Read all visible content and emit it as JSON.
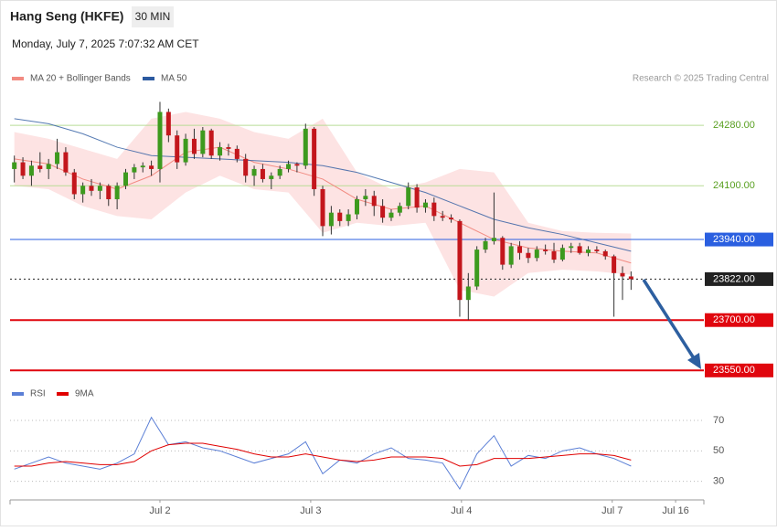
{
  "header": {
    "title": "Hang Seng (HKFE)",
    "interval": "30 MIN",
    "timestamp": "Monday, July 7, 2025 7:07:32 AM CET"
  },
  "chart_data": {
    "type": "candlestick",
    "credit": "Research © 2025 Trading Central",
    "xlim": [
      -0.5,
      80.5
    ],
    "xticks": [
      {
        "value": 17,
        "label": "Jul 2"
      },
      {
        "value": 34.6,
        "label": "Jul 3"
      },
      {
        "value": 52.2,
        "label": "Jul 4"
      },
      {
        "value": 69.8,
        "label": "Jul 7"
      },
      {
        "value": 77.2,
        "label": "Jul 16"
      }
    ],
    "ylim": [
      23510,
      24354
    ],
    "up_color": "#3d9a1e",
    "down_color": "#c3161c",
    "candles": [
      [
        24150,
        24190,
        24110,
        24170
      ],
      [
        24170,
        24185,
        24120,
        24130
      ],
      [
        24130,
        24175,
        24100,
        24160
      ],
      [
        24160,
        24200,
        24140,
        24150
      ],
      [
        24150,
        24180,
        24120,
        24165
      ],
      [
        24165,
        24240,
        24150,
        24200
      ],
      [
        24200,
        24215,
        24130,
        24140
      ],
      [
        24140,
        24150,
        24060,
        24075
      ],
      [
        24075,
        24110,
        24050,
        24100
      ],
      [
        24100,
        24120,
        24070,
        24085
      ],
      [
        24085,
        24110,
        24060,
        24100
      ],
      [
        24100,
        24105,
        24040,
        24060
      ],
      [
        24060,
        24110,
        24030,
        24100
      ],
      [
        24100,
        24150,
        24090,
        24140
      ],
      [
        24140,
        24165,
        24120,
        24155
      ],
      [
        24155,
        24170,
        24140,
        24160
      ],
      [
        24160,
        24175,
        24130,
        24150
      ],
      [
        24150,
        24350,
        24110,
        24320
      ],
      [
        24320,
        24330,
        24230,
        24250
      ],
      [
        24250,
        24265,
        24150,
        24170
      ],
      [
        24170,
        24255,
        24160,
        24240
      ],
      [
        24240,
        24270,
        24180,
        24195
      ],
      [
        24195,
        24275,
        24185,
        24265
      ],
      [
        24265,
        24270,
        24180,
        24190
      ],
      [
        24190,
        24230,
        24175,
        24215
      ],
      [
        24215,
        24225,
        24190,
        24210
      ],
      [
        24210,
        24220,
        24170,
        24180
      ],
      [
        24180,
        24195,
        24110,
        24130
      ],
      [
        24130,
        24160,
        24100,
        24150
      ],
      [
        24150,
        24165,
        24110,
        24120
      ],
      [
        24120,
        24140,
        24090,
        24130
      ],
      [
        24130,
        24160,
        24120,
        24150
      ],
      [
        24150,
        24175,
        24140,
        24165
      ],
      [
        24165,
        24170,
        24140,
        24160
      ],
      [
        24160,
        24285,
        24150,
        24270
      ],
      [
        24270,
        24275,
        24070,
        24090
      ],
      [
        24090,
        24100,
        23950,
        23980
      ],
      [
        23980,
        24040,
        23955,
        24020
      ],
      [
        24020,
        24030,
        23980,
        23995
      ],
      [
        23995,
        24030,
        23980,
        24015
      ],
      [
        24015,
        24070,
        24000,
        24060
      ],
      [
        24060,
        24090,
        24040,
        24070
      ],
      [
        24070,
        24085,
        24010,
        24040
      ],
      [
        24040,
        24060,
        23990,
        24005
      ],
      [
        24005,
        24030,
        23995,
        24020
      ],
      [
        24020,
        24050,
        24010,
        24040
      ],
      [
        24040,
        24110,
        24030,
        24095
      ],
      [
        24095,
        24105,
        24020,
        24035
      ],
      [
        24035,
        24060,
        24020,
        24050
      ],
      [
        24050,
        24065,
        23995,
        24010
      ],
      [
        24010,
        24025,
        23995,
        24005
      ],
      [
        24005,
        24015,
        23990,
        24000
      ],
      [
        23995,
        24000,
        23710,
        23760
      ],
      [
        23760,
        23840,
        23700,
        23800
      ],
      [
        23800,
        23920,
        23790,
        23910
      ],
      [
        23910,
        23945,
        23900,
        23935
      ],
      [
        23935,
        24080,
        23925,
        23945
      ],
      [
        23945,
        23950,
        23850,
        23865
      ],
      [
        23865,
        23930,
        23855,
        23920
      ],
      [
        23920,
        23935,
        23880,
        23900
      ],
      [
        23900,
        23915,
        23870,
        23885
      ],
      [
        23885,
        23920,
        23875,
        23910
      ],
      [
        23910,
        23925,
        23895,
        23905
      ],
      [
        23905,
        23930,
        23870,
        23880
      ],
      [
        23880,
        23925,
        23875,
        23915
      ],
      [
        23915,
        23930,
        23900,
        23920
      ],
      [
        23920,
        23930,
        23895,
        23900
      ],
      [
        23900,
        23920,
        23890,
        23910
      ],
      [
        23910,
        23920,
        23900,
        23905
      ],
      [
        23905,
        23910,
        23880,
        23890
      ],
      [
        23890,
        23895,
        23710,
        23840
      ],
      [
        23840,
        23860,
        23760,
        23830
      ],
      [
        23830,
        23845,
        23790,
        23822
      ]
    ],
    "overlay_x": [
      0,
      4,
      8,
      12,
      16,
      20,
      24,
      28,
      32,
      36,
      40,
      44,
      48,
      52,
      56,
      60,
      64,
      68,
      72
    ],
    "series": [
      {
        "name": "MA 20 + Bollinger Bands",
        "color": "#f28b82",
        "band_color": "#fde3e3",
        "values": [
          24180,
          24165,
          24120,
          24090,
          24130,
          24200,
          24215,
          24170,
          24150,
          24120,
          24060,
          24030,
          24040,
          23990,
          23940,
          23915,
          23905,
          23900,
          23870
        ],
        "upper": [
          24260,
          24240,
          24210,
          24180,
          24300,
          24320,
          24300,
          24260,
          24240,
          24300,
          24140,
          24090,
          24110,
          24150,
          24140,
          23990,
          23965,
          23960,
          23958
        ],
        "lower": [
          24100,
          24090,
          24040,
          24010,
          24000,
          24080,
          24130,
          24090,
          24080,
          23960,
          23990,
          23980,
          23990,
          23790,
          23770,
          23840,
          23850,
          23845,
          23835
        ]
      },
      {
        "name": "MA 50",
        "color": "#2c5aa0",
        "values": [
          24300,
          24285,
          24255,
          24215,
          24190,
          24185,
          24180,
          24175,
          24170,
          24160,
          24140,
          24110,
          24080,
          24040,
          24000,
          23975,
          23955,
          23930,
          23905
        ]
      }
    ],
    "levels": [
      {
        "value": 24280,
        "label": "24280.00",
        "color": "#b9dc96",
        "text_color": "#5aa022",
        "boxed": false,
        "dashed": false,
        "width": 1
      },
      {
        "value": 24100,
        "label": "24100.00",
        "color": "#b9dc96",
        "text_color": "#5aa022",
        "boxed": false,
        "dashed": false,
        "width": 1
      },
      {
        "value": 23940,
        "label": "23940.00",
        "color": "#2a5fe0",
        "text_color": "#ffffff",
        "boxed": true,
        "dashed": false,
        "width": 1
      },
      {
        "value": 23822,
        "label": "23822.00",
        "color": "#222222",
        "text_color": "#ffffff",
        "boxed": true,
        "dashed": true,
        "width": 1
      },
      {
        "value": 23700,
        "label": "23700.00",
        "color": "#e0060e",
        "text_color": "#ffffff",
        "boxed": true,
        "dashed": false,
        "width": 2
      },
      {
        "value": 23550,
        "label": "23550.00",
        "color": "#e0060e",
        "text_color": "#ffffff",
        "boxed": true,
        "dashed": false,
        "width": 2
      }
    ],
    "rsi": {
      "type": "line",
      "ylim": [
        19,
        79
      ],
      "yticks": [
        70,
        50,
        30
      ],
      "x": [
        0,
        2,
        4,
        6,
        8,
        10,
        12,
        14,
        16,
        18,
        20,
        22,
        24,
        26,
        28,
        30,
        32,
        34,
        36,
        38,
        40,
        42,
        44,
        46,
        48,
        50,
        52,
        54,
        56,
        58,
        60,
        62,
        64,
        66,
        68,
        70,
        72
      ],
      "series": [
        {
          "name": "RSI",
          "color": "#5b7fd6",
          "values": [
            38,
            42,
            46,
            42,
            40,
            38,
            42,
            48,
            72,
            54,
            56,
            52,
            50,
            46,
            42,
            45,
            48,
            56,
            35,
            44,
            42,
            48,
            52,
            45,
            44,
            42,
            25,
            48,
            60,
            40,
            47,
            45,
            50,
            52,
            48,
            45,
            40
          ]
        },
        {
          "name": "9MA",
          "color": "#e00000",
          "values": [
            40,
            40,
            42,
            43,
            42,
            41,
            41,
            43,
            50,
            54,
            55,
            55,
            53,
            51,
            48,
            46,
            46,
            48,
            46,
            44,
            43,
            44,
            46,
            46,
            46,
            45,
            40,
            41,
            45,
            45,
            45,
            46,
            47,
            48,
            48,
            47,
            44
          ]
        }
      ]
    }
  }
}
